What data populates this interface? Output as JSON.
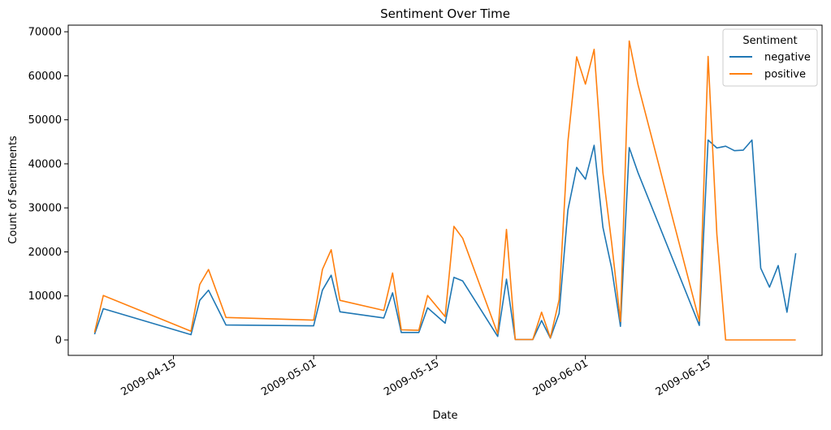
{
  "chart_data": {
    "type": "line",
    "title": "Sentiment Over Time",
    "xlabel": "Date",
    "ylabel": "Count of Sentiments",
    "x_tick_labels": [
      "2009-04-15",
      "2009-05-01",
      "2009-05-15",
      "2009-06-01",
      "2009-06-15"
    ],
    "y_ticks": [
      0,
      10000,
      20000,
      30000,
      40000,
      50000,
      60000,
      70000
    ],
    "xlim": [
      "2009-04-03",
      "2009-06-28"
    ],
    "ylim": [
      -3500,
      71500
    ],
    "grid": false,
    "legend": {
      "title": "Sentiment",
      "placement": "top-right"
    },
    "x": [
      "2009-04-06",
      "2009-04-07",
      "2009-04-17",
      "2009-04-18",
      "2009-04-19",
      "2009-04-21",
      "2009-05-01",
      "2009-05-02",
      "2009-05-03",
      "2009-05-04",
      "2009-05-09",
      "2009-05-10",
      "2009-05-11",
      "2009-05-13",
      "2009-05-14",
      "2009-05-16",
      "2009-05-17",
      "2009-05-18",
      "2009-05-22",
      "2009-05-23",
      "2009-05-24",
      "2009-05-26",
      "2009-05-27",
      "2009-05-28",
      "2009-05-29",
      "2009-05-30",
      "2009-05-31",
      "2009-06-01",
      "2009-06-02",
      "2009-06-03",
      "2009-06-04",
      "2009-06-05",
      "2009-06-06",
      "2009-06-07",
      "2009-06-14",
      "2009-06-15",
      "2009-06-16",
      "2009-06-17",
      "2009-06-18",
      "2009-06-19",
      "2009-06-20",
      "2009-06-21",
      "2009-06-22",
      "2009-06-23",
      "2009-06-24",
      "2009-06-25"
    ],
    "series": [
      {
        "name": "negative",
        "color": "#1f77b4",
        "values": [
          1300,
          7100,
          1200,
          9000,
          11300,
          3400,
          3200,
          11300,
          14700,
          6400,
          5000,
          10700,
          1700,
          1700,
          7300,
          3800,
          14200,
          13400,
          800,
          13800,
          100,
          100,
          4400,
          400,
          6000,
          29500,
          39200,
          36500,
          44200,
          25600,
          16300,
          3100,
          43700,
          38000,
          3300,
          45400,
          43600,
          44000,
          43000,
          43100,
          45400,
          16300,
          12000,
          16900,
          6300,
          19700
        ]
      },
      {
        "name": "positive",
        "color": "#ff7f0e",
        "values": [
          1700,
          10100,
          2000,
          12600,
          16000,
          5100,
          4500,
          16000,
          20500,
          9000,
          6700,
          15200,
          2300,
          2200,
          10100,
          5300,
          25800,
          23100,
          1400,
          25100,
          100,
          100,
          6300,
          500,
          9100,
          45000,
          64300,
          58100,
          66000,
          38000,
          22000,
          4200,
          67900,
          58000,
          4300,
          64400,
          24000,
          0,
          0,
          0,
          0,
          0,
          0,
          0,
          0,
          0
        ]
      }
    ]
  }
}
